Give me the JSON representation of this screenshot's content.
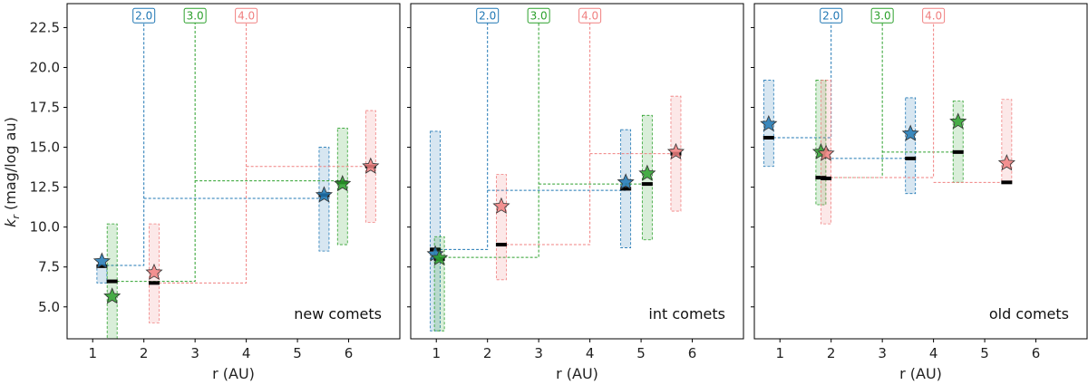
{
  "chart_data": {
    "type": "scatter",
    "ylabel_main": "k",
    "ylabel_sub": "r",
    "ylabel_rest": " (mag/log au)",
    "xlabel": "r (AU)",
    "xlim": [
      0.5,
      7.0
    ],
    "ylim": [
      3.0,
      24.0
    ],
    "yticks": [
      5.0,
      7.5,
      10.0,
      12.5,
      15.0,
      17.5,
      20.0,
      22.5
    ],
    "ytick_labels": [
      "5.0",
      "7.5",
      "10.0",
      "12.5",
      "15.0",
      "17.5",
      "20.0",
      "22.5"
    ],
    "xticks": [
      1,
      2,
      3,
      4,
      5,
      6
    ],
    "xtick_labels": [
      "1",
      "2",
      "3",
      "4",
      "5",
      "6"
    ],
    "colors": {
      "2.0": "#1f77b4",
      "3.0": "#2ca02c",
      "4.0": "#f08080"
    },
    "breakpoint_labels": [
      "2.0",
      "3.0",
      "4.0"
    ],
    "panels": [
      {
        "label": "new comets",
        "series": [
          {
            "breakpoint": "2.0",
            "points": [
              {
                "x": 1.18,
                "star": 7.85,
                "median": 7.55,
                "lo": 6.5,
                "hi": 7.6
              },
              {
                "x": 5.52,
                "star": 12.0,
                "median": 12.0,
                "lo": 8.5,
                "hi": 15.0
              }
            ],
            "step": {
              "y_in": 7.6,
              "y_out": 11.8
            }
          },
          {
            "breakpoint": "3.0",
            "points": [
              {
                "x": 1.38,
                "star": 5.65,
                "median": 6.6,
                "lo": 3.0,
                "hi": 10.2
              },
              {
                "x": 5.88,
                "star": 12.7,
                "median": 12.8,
                "lo": 8.9,
                "hi": 16.2
              }
            ],
            "step": {
              "y_in": 6.6,
              "y_out": 12.9
            }
          },
          {
            "breakpoint": "4.0",
            "points": [
              {
                "x": 2.2,
                "star": 7.15,
                "median": 6.5,
                "lo": 4.0,
                "hi": 10.2
              },
              {
                "x": 6.43,
                "star": 13.8,
                "median": 13.8,
                "lo": 10.3,
                "hi": 17.3
              }
            ],
            "step": {
              "y_in": 6.5,
              "y_out": 13.8
            }
          }
        ]
      },
      {
        "label": "int comets",
        "series": [
          {
            "breakpoint": "2.0",
            "points": [
              {
                "x": 0.98,
                "star": 8.3,
                "median": 8.6,
                "lo": 3.5,
                "hi": 16.0
              },
              {
                "x": 4.7,
                "star": 12.8,
                "median": 12.4,
                "lo": 8.7,
                "hi": 16.1
              }
            ],
            "step": {
              "y_in": 8.6,
              "y_out": 12.3
            }
          },
          {
            "breakpoint": "3.0",
            "points": [
              {
                "x": 1.06,
                "star": 8.05,
                "median": 8.0,
                "lo": 3.5,
                "hi": 9.4
              },
              {
                "x": 5.12,
                "star": 13.35,
                "median": 12.7,
                "lo": 9.2,
                "hi": 17.0
              }
            ],
            "step": {
              "y_in": 8.1,
              "y_out": 12.7
            }
          },
          {
            "breakpoint": "4.0",
            "points": [
              {
                "x": 2.27,
                "star": 11.3,
                "median": 8.9,
                "lo": 6.7,
                "hi": 13.3
              },
              {
                "x": 5.68,
                "star": 14.7,
                "median": 14.6,
                "lo": 11.0,
                "hi": 18.2
              }
            ],
            "step": {
              "y_in": 8.9,
              "y_out": 14.6
            }
          }
        ]
      },
      {
        "label": "old comets",
        "series": [
          {
            "breakpoint": "2.0",
            "points": [
              {
                "x": 0.78,
                "star": 16.45,
                "median": 15.6,
                "lo": 13.8,
                "hi": 19.2
              },
              {
                "x": 3.55,
                "star": 15.85,
                "median": 14.3,
                "lo": 12.1,
                "hi": 18.1
              }
            ],
            "step": {
              "y_in": 15.6,
              "y_out": 14.3
            }
          },
          {
            "breakpoint": "3.0",
            "points": [
              {
                "x": 1.8,
                "star": 14.7,
                "median": 13.1,
                "lo": 11.4,
                "hi": 19.2
              },
              {
                "x": 4.48,
                "star": 16.6,
                "median": 14.7,
                "lo": 12.8,
                "hi": 17.9
              }
            ],
            "step": {
              "y_in": 13.1,
              "y_out": 14.7
            }
          },
          {
            "breakpoint": "4.0",
            "points": [
              {
                "x": 1.9,
                "star": 14.6,
                "median": 13.05,
                "lo": 10.2,
                "hi": 19.2
              },
              {
                "x": 5.43,
                "star": 14.0,
                "median": 12.8,
                "lo": 12.8,
                "hi": 18.0
              }
            ],
            "step": {
              "y_in": 13.1,
              "y_out": 12.8
            }
          }
        ]
      }
    ]
  }
}
